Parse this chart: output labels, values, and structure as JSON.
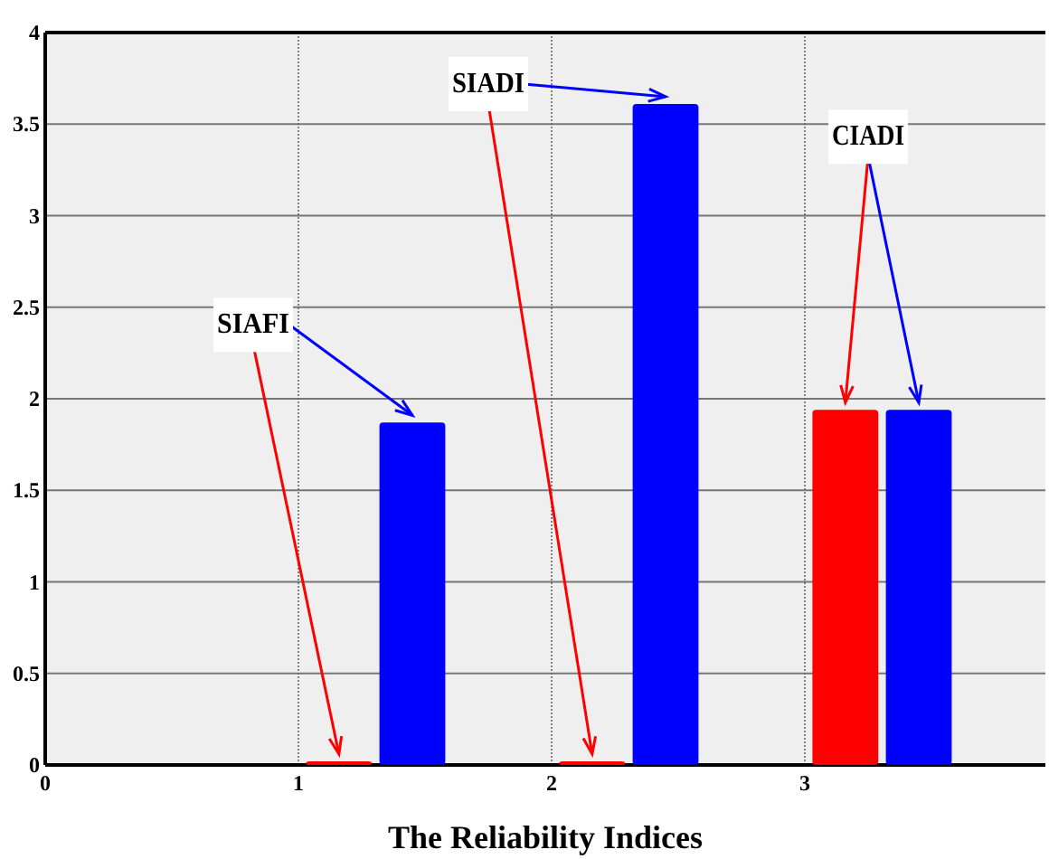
{
  "chart_data": {
    "type": "bar",
    "xlabel": "The Reliability Indices",
    "xlim": [
      0,
      3.95
    ],
    "xticks": [
      0,
      1,
      2,
      3
    ],
    "ylim": [
      0,
      4
    ],
    "yticks": [
      0,
      0.5,
      1,
      1.5,
      2,
      2.5,
      3,
      3.5,
      4
    ],
    "grid": true,
    "series": [
      {
        "color": "#ff0000",
        "x": [
          1.16,
          2.16,
          3.16
        ],
        "values": [
          0.02,
          0.02,
          1.94
        ]
      },
      {
        "color": "#0000ff",
        "x": [
          1.45,
          2.45,
          3.45
        ],
        "values": [
          1.87,
          3.61,
          1.94
        ]
      }
    ],
    "annotations": [
      {
        "text": "SIAFI",
        "x": 1.45,
        "y": 1.87
      },
      {
        "text": "SIADI",
        "x": 2.45,
        "y": 3.61
      },
      {
        "text": "CIADI",
        "x": 3.45,
        "y": 1.94
      }
    ]
  }
}
